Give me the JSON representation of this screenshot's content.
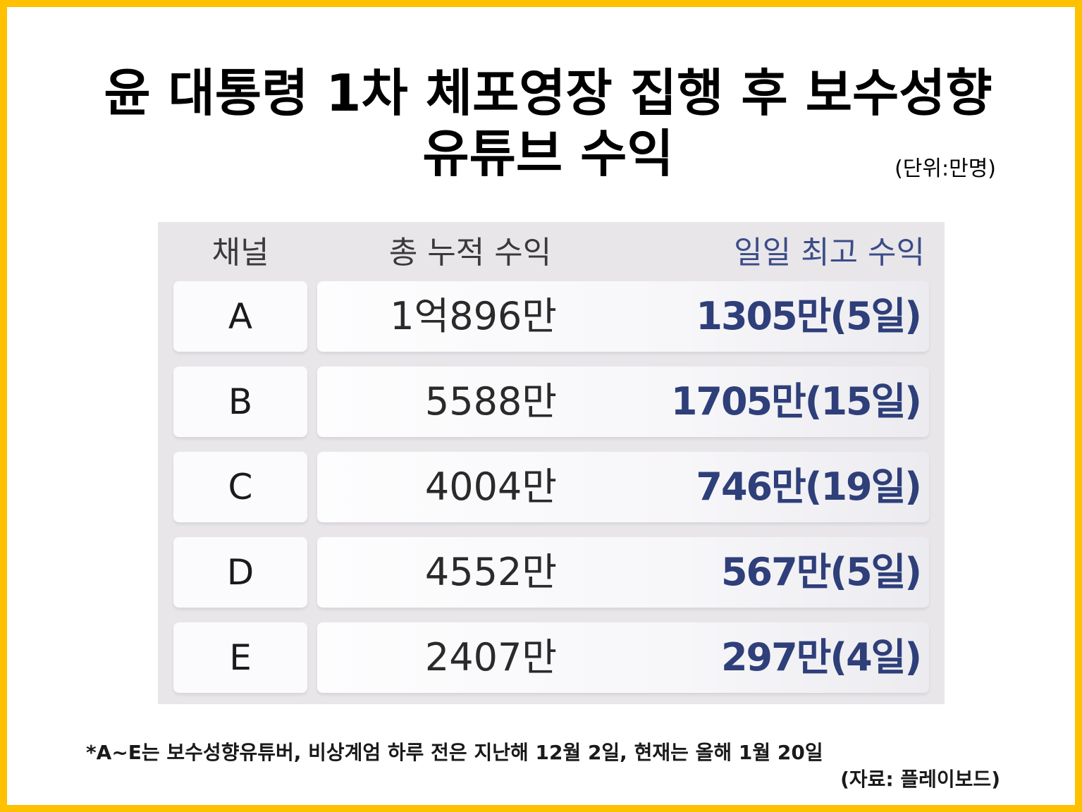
{
  "title": {
    "line1": "윤 대통령 1차 체포영장 집행 후 보수성향",
    "line2": "유튜브 수익",
    "unit": "(단위:만명)"
  },
  "table": {
    "headers": {
      "channel": "채널",
      "total": "총 누적 수익",
      "daily": "일일 최고 수익"
    },
    "rows": [
      {
        "channel": "A",
        "total": "1억896만",
        "daily": "1305만(5일)"
      },
      {
        "channel": "B",
        "total": "5588만",
        "daily": "1705만(15일)"
      },
      {
        "channel": "C",
        "total": "4004만",
        "daily": "746만(19일)"
      },
      {
        "channel": "D",
        "total": "4552만",
        "daily": "567만(5일)"
      },
      {
        "channel": "E",
        "total": "2407만",
        "daily": "297만(4일)"
      }
    ]
  },
  "footnote": {
    "note": "*A~E는 보수성향유튜버, 비상계엄 하루 전은 지난해 12월 2일, 현재는 올해 1월 20일",
    "source": "(자료: 플레이보드)"
  },
  "colors": {
    "border": "#FFC000",
    "table_bg": "#e9e6ea",
    "daily_text": "#2e3f7a"
  }
}
